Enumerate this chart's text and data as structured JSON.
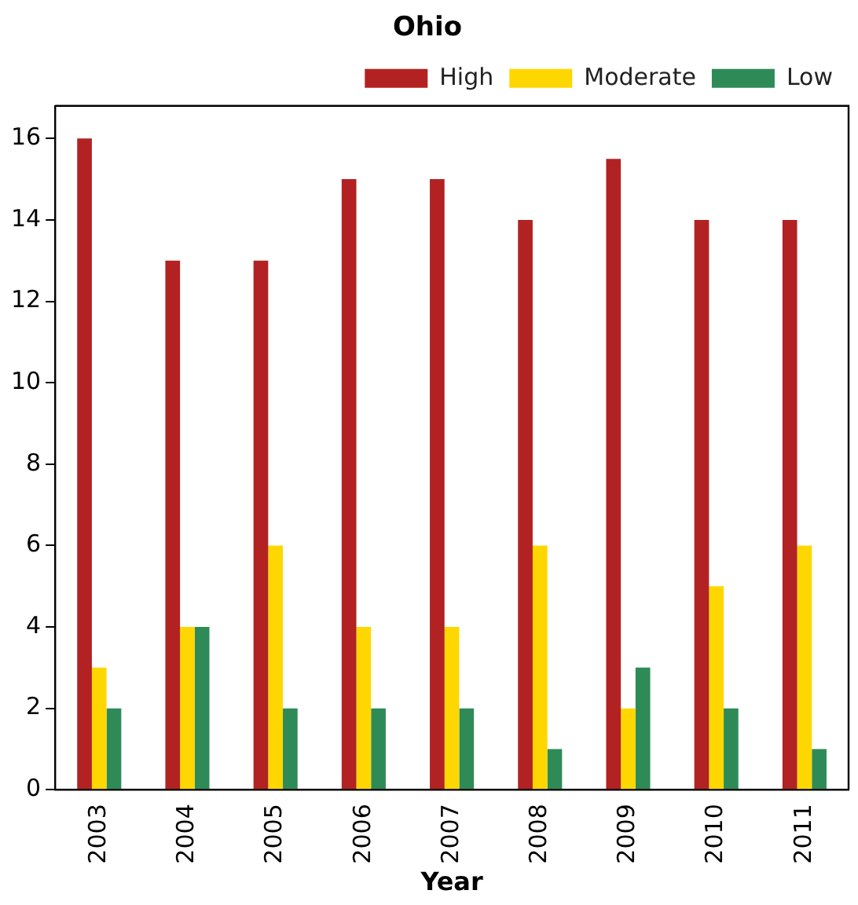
{
  "chart_data": {
    "type": "bar",
    "title": "Ohio",
    "xlabel": "Year",
    "categories": [
      "2003",
      "2004",
      "2005",
      "2006",
      "2007",
      "2008",
      "2009",
      "2010",
      "2011"
    ],
    "series": [
      {
        "name": "High",
        "color": "#b22222",
        "values": [
          16,
          13,
          13,
          15,
          15,
          14,
          15.5,
          14,
          14
        ]
      },
      {
        "name": "Moderate",
        "color": "#ffd700",
        "values": [
          3,
          4,
          6,
          4,
          4,
          6,
          2,
          5,
          6
        ]
      },
      {
        "name": "Low",
        "color": "#2e8b57",
        "values": [
          2,
          4,
          2,
          2,
          2,
          1,
          3,
          2,
          1
        ]
      }
    ],
    "ylim": [
      0,
      16.8
    ],
    "yticks": [
      0,
      2,
      4,
      6,
      8,
      10,
      12,
      14,
      16
    ],
    "grid": false,
    "legend": "top right"
  }
}
